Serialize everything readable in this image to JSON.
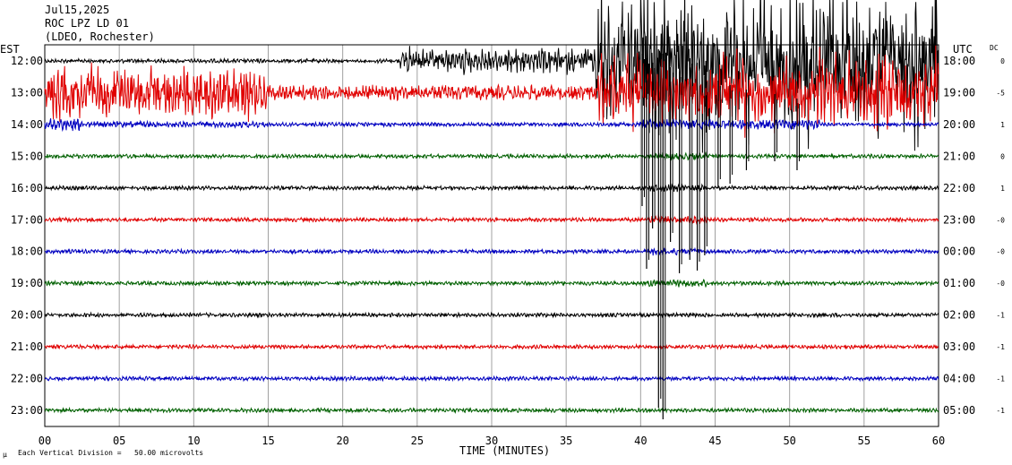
{
  "header": {
    "date": "Jul15,2025",
    "station": "ROC LPZ LD 01",
    "network": "(LDEO, Rochester)"
  },
  "left_axis_title": "EST",
  "right_axis_title": "UTC",
  "dc_title": "DC",
  "x_axis_title": "TIME (MINUTES)",
  "footnote": "Each Vertical Division =   50.00 microvolts",
  "footnote_mark": "μ",
  "colors": {
    "black": "#000000",
    "red": "#e00000",
    "blue": "#0000c0",
    "green": "#006000",
    "grid": "#a0a0a0"
  },
  "chart_data": {
    "type": "line",
    "x_ticks": [
      "00",
      "05",
      "10",
      "15",
      "20",
      "25",
      "30",
      "35",
      "40",
      "45",
      "50",
      "55",
      "60"
    ],
    "xlim": [
      0,
      60
    ],
    "grid": true,
    "rows": [
      {
        "est": "12:00",
        "utc": "18:00",
        "dc": "0",
        "color": "black"
      },
      {
        "est": "13:00",
        "utc": "19:00",
        "dc": "-5",
        "color": "red"
      },
      {
        "est": "14:00",
        "utc": "20:00",
        "dc": "1",
        "color": "blue"
      },
      {
        "est": "15:00",
        "utc": "21:00",
        "dc": "0",
        "color": "green"
      },
      {
        "est": "16:00",
        "utc": "22:00",
        "dc": "1",
        "color": "black"
      },
      {
        "est": "17:00",
        "utc": "23:00",
        "dc": "-0",
        "color": "red"
      },
      {
        "est": "18:00",
        "utc": "00:00",
        "dc": "-0",
        "color": "blue"
      },
      {
        "est": "19:00",
        "utc": "01:00",
        "dc": "-0",
        "color": "green"
      },
      {
        "est": "20:00",
        "utc": "02:00",
        "dc": "-1",
        "color": "black"
      },
      {
        "est": "21:00",
        "utc": "03:00",
        "dc": "-1",
        "color": "red"
      },
      {
        "est": "22:00",
        "utc": "04:00",
        "dc": "-1",
        "color": "blue"
      },
      {
        "est": "23:00",
        "utc": "05:00",
        "dc": "-1",
        "color": "green"
      }
    ]
  }
}
